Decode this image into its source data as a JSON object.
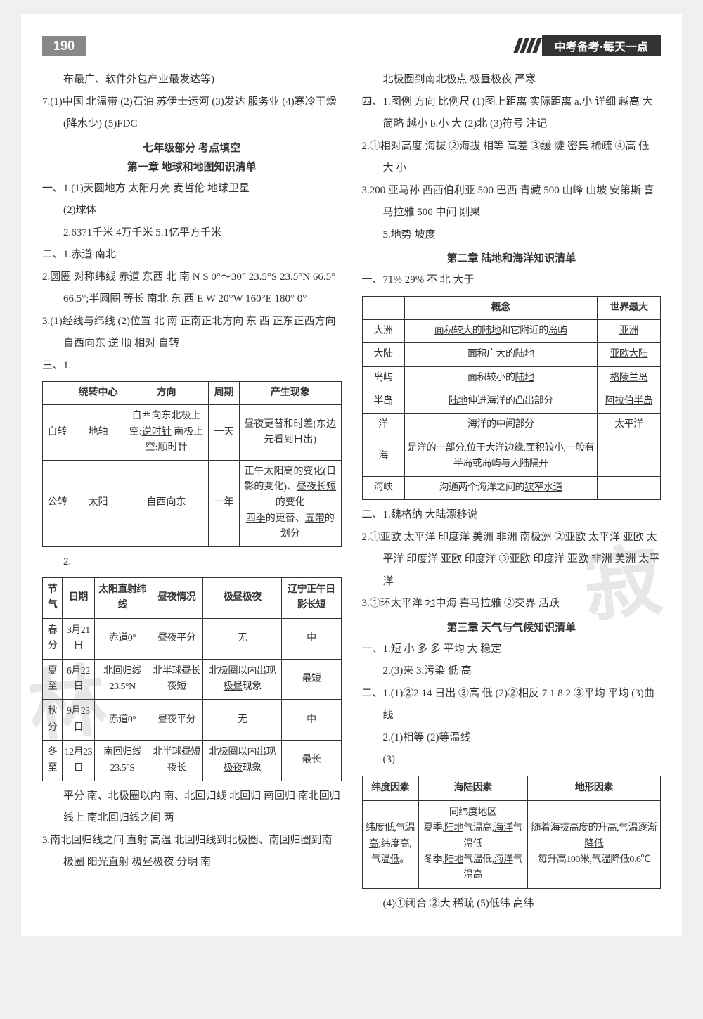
{
  "header": {
    "page_number": "190",
    "title": "中考备考·每天一点"
  },
  "left": {
    "intro6": "布最广、软件外包产业最发达等)",
    "intro7": "7.(1)中国 北温带 (2)石油 苏伊士运河 (3)发达 服务业 (4)寒冷干燥(降水少) (5)FDC",
    "sec_title1": "七年级部分 考点填空",
    "sec_title2": "第一章 地球和地图知识清单",
    "p1_1": "一、1.(1)天圆地方 太阳月亮 麦哲伦 地球卫星",
    "p1_1b": "(2)球体",
    "p1_2": "2.6371千米 4万千米 5.1亿平方千米",
    "p2_1": "二、1.赤道 南北",
    "p2_2": "2.圆圈 对称纬线 赤道 东西 北 南 N S 0°～30° 23.5°S 23.5°N 66.5° 66.5°;半圆圈 等长 南北 东 西 E W 20°W 160°E 180° 0°",
    "p2_3": "3.(1)经线与纬线 (2)位置 北 南 正南正北方向 东 西 正东正西方向 自西向东 逆 顺 相对 自转",
    "p3_1": "三、1.",
    "table31": {
      "headers": [
        "",
        "绕转中心",
        "方向",
        "周期",
        "产生现象"
      ],
      "rows": [
        [
          "自转",
          "地轴",
          "自西向东北极上空:<u>逆时针</u> 南极上空:<u>顺时针</u>",
          "一天",
          "<u>昼夜更替</u>和<u>时差</u>(东边先看到日出)"
        ],
        [
          "公转",
          "太阳",
          "自<u>西</u>向<u>东</u>",
          "一年",
          "<u>正午太阳高</u>的变化(日影的变化)、<u>昼夜长短</u>的变化<br><u>四季</u>的更替、<u>五带</u>的划分"
        ]
      ]
    },
    "p3_2": "2.",
    "table32": {
      "headers": [
        "节气",
        "日期",
        "太阳直射纬线",
        "昼夜情况",
        "极昼极夜",
        "辽宁正午日影长短"
      ],
      "rows": [
        [
          "春分",
          "3月21日",
          "赤道0°",
          "昼夜平分",
          "无",
          "中"
        ],
        [
          "夏至",
          "6月22日",
          "北回归线23.5°N",
          "北半球昼长夜短",
          "北极圈以内出现<u>极昼</u>现象",
          "最短"
        ],
        [
          "秋分",
          "9月23日",
          "赤道0°",
          "昼夜平分",
          "无",
          "中"
        ],
        [
          "冬至",
          "12月23日",
          "南回归线23.5°S",
          "北半球昼短夜长",
          "北极圈以内出现<u>极夜</u>现象",
          "最长"
        ]
      ]
    },
    "p3_2b": "平分 南、北极圈以内 南、北回归线 北回归 南回归 南北回归线上 南北回归线之间 两",
    "p3_3": "3.南北回归线之间 直射 高温 北回归线到北极圈、南回归圈到南极圈 阳光直射 极昼极夜 分明 南"
  },
  "right": {
    "r1": "北极圈到南北极点 极昼极夜 严寒",
    "r_four": "四、1.图例 方向 比例尺 (1)图上距离 实际距离 a.小 详细 越高 大 简略 越小 b.小 大 (2)北 (3)符号 注记",
    "r_2": "2.①相对高度 海拔 ②海拔 相等 高差 ③缓 陡 密集 稀疏 ④高 低 大 小",
    "r_3": "3.200 亚马孙 西西伯利亚 500 巴西 青藏 500 山峰 山坡 安第斯 喜马拉雅 500 中间 刚果",
    "r_5": "5.地势 坡度",
    "ch2_title": "第二章 陆地和海洋知识清单",
    "ch2_1": "一、71% 29% 不 北 大于",
    "tableR1": {
      "headers": [
        "",
        "概念",
        "世界最大"
      ],
      "rows": [
        [
          "大洲",
          "<u>面积较大的陆地</u>和它附近的<u>岛屿</u>",
          "<u>亚洲</u>"
        ],
        [
          "大陆",
          "面积广大的陆地",
          "<u>亚欧大陆</u>"
        ],
        [
          "岛屿",
          "面积较小的<u>陆地</u>",
          "<u>格陵兰岛</u>"
        ],
        [
          "半岛",
          "<u>陆地</u>伸进海洋的凸出部分",
          "<u>阿拉伯半岛</u>"
        ],
        [
          "洋",
          "海洋的中间部分",
          "<u>太平洋</u>"
        ],
        [
          "海",
          "是洋的一部分,位于大洋边缘,面积较小,一般有半岛或岛屿与大陆隔开",
          ""
        ],
        [
          "海峡",
          "沟通两个海洋之间的<u>狭窄水道</u>",
          ""
        ]
      ]
    },
    "ch2_two_1": "二、1.魏格纳 大陆漂移说",
    "ch2_two_2": "2.①亚欧 太平洋 印度洋 美洲 非洲 南极洲 ②亚欧 太平洋 亚欧 太平洋 印度洋 亚欧 印度洋 ③亚欧 印度洋 亚欧 非洲 美洲 太平洋",
    "ch2_two_3": "3.①环太平洋 地中海 喜马拉雅 ②交界 活跃",
    "ch3_title": "第三章 天气与气候知识清单",
    "ch3_1": "一、1.短 小 多 多 平均 大 稳定",
    "ch3_1b": "2.(3)来 3.污染 低 高",
    "ch3_2": "二、1.(1)②2 14 日出 ③高 低 (2)②相反 7 1 8 2 ③平均 平均 (3)曲线",
    "ch3_2b": "2.(1)相等 (2)等温线",
    "ch3_2c": "(3)",
    "tableR2": {
      "headers": [
        "纬度因素",
        "海陆因素",
        "地形因素"
      ],
      "rows": [
        [
          "纬度低,气温<u>高</u>;纬度高,气温<u>低</u>。",
          "同纬度地区<br>夏季,<u>陆地</u>气温高,<u>海洋</u>气温低<br>冬季,<u>陆地</u>气温低,<u>海洋</u>气温高",
          "随着海拔高度的升高,气温逐渐<u>降低</u><br>每升高100米,气温降低0.6℃"
        ]
      ]
    },
    "ch3_last": "(4)①闭合 ②大 稀疏 (5)低纬 高纬"
  },
  "watermark_left": "林",
  "watermark_right": "寂",
  "colors": {
    "page_bg": "#ffffff",
    "body_bg": "#f0f0f0",
    "header_dark": "#333333",
    "border": "#333333",
    "text": "#333333"
  }
}
